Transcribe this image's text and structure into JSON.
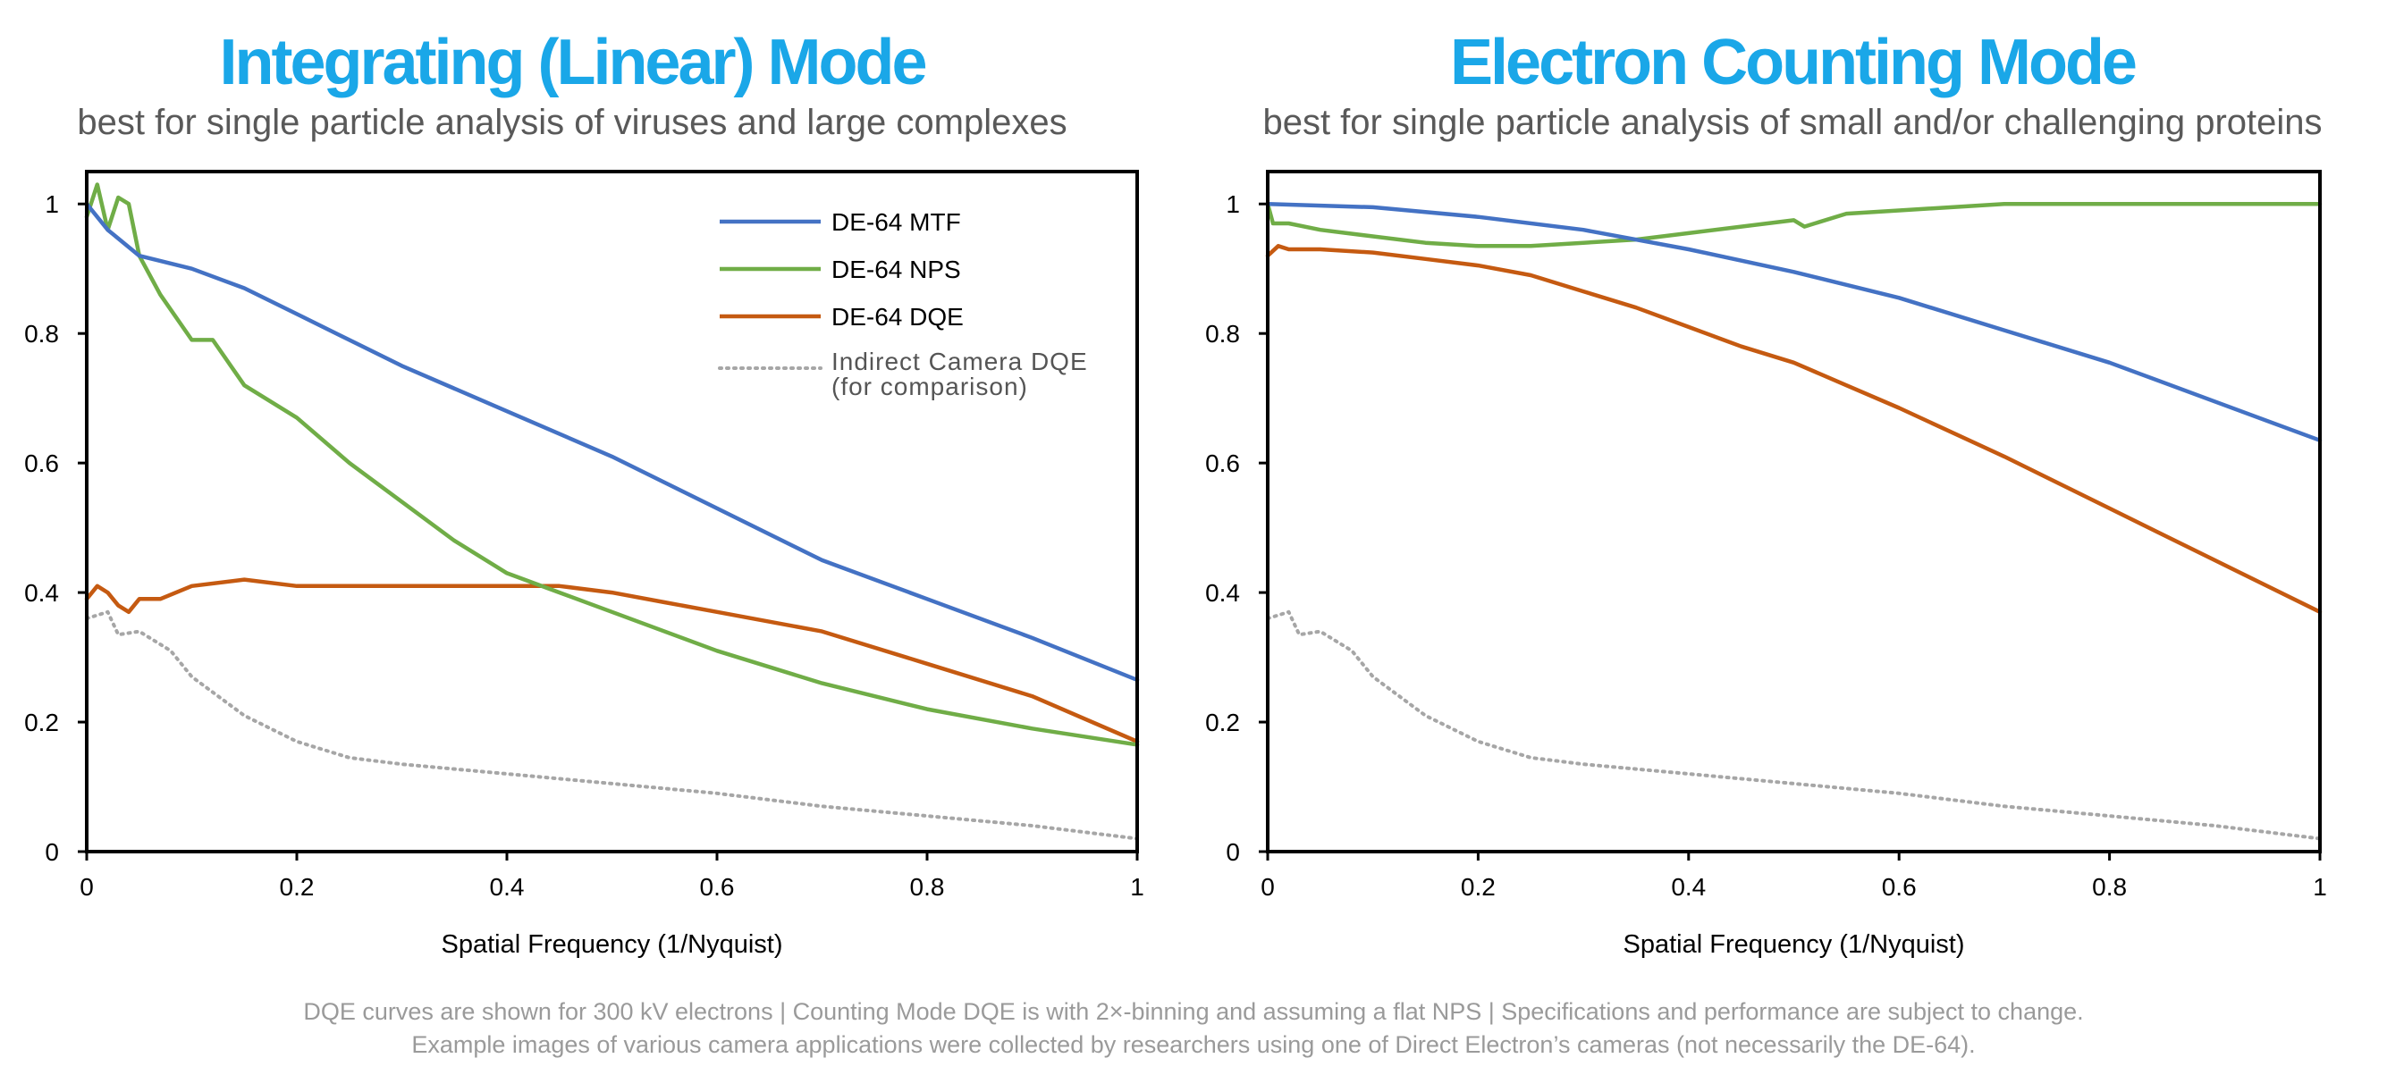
{
  "panels": [
    {
      "title": "Integrating (Linear) Mode",
      "subtitle": "best for single particle analysis of viruses and large complexes"
    },
    {
      "title": "Electron Counting Mode",
      "subtitle": "best for single particle analysis of small and/or challenging proteins"
    }
  ],
  "footer": {
    "line1": "DQE curves are shown for 300 kV electrons |   Counting Mode DQE is with 2×-binning and assuming a flat NPS |   Specifications and performance are subject to change.",
    "line2": "Example images of various camera applications were collected by researchers using one of Direct Electron’s cameras (not necessarily the  DE-64)."
  },
  "colors": {
    "title": "#1aa7e8",
    "mtf": "#4472c4",
    "nps": "#70ad47",
    "dqe": "#c55a11",
    "indirect": "#a6a6a6"
  },
  "chart_data": [
    {
      "type": "line",
      "title": "Integrating (Linear) Mode",
      "xlabel": "Spatial Frequency (1/Nyquist)",
      "ylabel": "",
      "xlim": [
        0,
        1
      ],
      "ylim": [
        0,
        1.05
      ],
      "xticks": [
        "0",
        "0.2",
        "0.4",
        "0.6",
        "0.8",
        "1"
      ],
      "yticks": [
        "0",
        "0.2",
        "0.4",
        "0.6",
        "0.8",
        "1"
      ],
      "grid": false,
      "legend": "top-right",
      "series": [
        {
          "name": "DE-64  MTF",
          "color": "#4472c4",
          "style": "solid",
          "x": [
            0,
            0.02,
            0.05,
            0.1,
            0.15,
            0.2,
            0.3,
            0.4,
            0.5,
            0.6,
            0.7,
            0.8,
            0.9,
            1.0
          ],
          "y": [
            1.0,
            0.96,
            0.92,
            0.9,
            0.87,
            0.83,
            0.75,
            0.68,
            0.61,
            0.53,
            0.45,
            0.39,
            0.33,
            0.265
          ]
        },
        {
          "name": "DE-64  NPS",
          "color": "#70ad47",
          "style": "solid",
          "x": [
            0,
            0.01,
            0.02,
            0.03,
            0.04,
            0.05,
            0.07,
            0.1,
            0.12,
            0.15,
            0.2,
            0.25,
            0.3,
            0.35,
            0.4,
            0.45,
            0.5,
            0.6,
            0.7,
            0.8,
            0.9,
            1.0
          ],
          "y": [
            0.98,
            1.03,
            0.96,
            1.01,
            1.0,
            0.92,
            0.86,
            0.79,
            0.79,
            0.72,
            0.67,
            0.6,
            0.54,
            0.48,
            0.43,
            0.4,
            0.37,
            0.31,
            0.26,
            0.22,
            0.19,
            0.165
          ]
        },
        {
          "name": "DE-64 DQE",
          "color": "#c55a11",
          "style": "solid",
          "x": [
            0,
            0.01,
            0.02,
            0.03,
            0.04,
            0.05,
            0.07,
            0.1,
            0.15,
            0.2,
            0.25,
            0.3,
            0.35,
            0.4,
            0.45,
            0.5,
            0.55,
            0.6,
            0.7,
            0.8,
            0.9,
            1.0
          ],
          "y": [
            0.39,
            0.41,
            0.4,
            0.38,
            0.37,
            0.39,
            0.39,
            0.41,
            0.42,
            0.41,
            0.41,
            0.41,
            0.41,
            0.41,
            0.41,
            0.4,
            0.385,
            0.37,
            0.34,
            0.29,
            0.24,
            0.17
          ]
        },
        {
          "name": "Indirect Camera DQE (for comparison)",
          "color": "#a6a6a6",
          "style": "dotted",
          "x": [
            0,
            0.02,
            0.03,
            0.05,
            0.08,
            0.1,
            0.15,
            0.2,
            0.25,
            0.3,
            0.4,
            0.5,
            0.6,
            0.7,
            0.8,
            0.9,
            1.0
          ],
          "y": [
            0.36,
            0.37,
            0.335,
            0.34,
            0.31,
            0.27,
            0.21,
            0.17,
            0.145,
            0.135,
            0.12,
            0.105,
            0.09,
            0.07,
            0.055,
            0.04,
            0.02
          ]
        }
      ]
    },
    {
      "type": "line",
      "title": "Electron Counting Mode",
      "xlabel": "Spatial Frequency (1/Nyquist)",
      "ylabel": "",
      "xlim": [
        0,
        1
      ],
      "ylim": [
        0,
        1.05
      ],
      "xticks": [
        "0",
        "0.2",
        "0.4",
        "0.6",
        "0.8",
        "1"
      ],
      "yticks": [
        "0",
        "0.2",
        "0.4",
        "0.6",
        "0.8",
        "1"
      ],
      "grid": false,
      "legend": "none",
      "series": [
        {
          "name": "DE-64  MTF",
          "color": "#4472c4",
          "style": "solid",
          "x": [
            0,
            0.1,
            0.2,
            0.3,
            0.4,
            0.5,
            0.6,
            0.7,
            0.8,
            0.9,
            1.0
          ],
          "y": [
            1.0,
            0.995,
            0.98,
            0.96,
            0.93,
            0.895,
            0.855,
            0.805,
            0.755,
            0.695,
            0.635
          ]
        },
        {
          "name": "DE-64  NPS",
          "color": "#70ad47",
          "style": "solid",
          "x": [
            0,
            0.005,
            0.02,
            0.05,
            0.1,
            0.15,
            0.2,
            0.25,
            0.3,
            0.35,
            0.4,
            0.45,
            0.5,
            0.51,
            0.55,
            0.6,
            0.7,
            0.8,
            0.9,
            1.0
          ],
          "y": [
            1.0,
            0.97,
            0.97,
            0.96,
            0.95,
            0.94,
            0.935,
            0.935,
            0.94,
            0.945,
            0.955,
            0.965,
            0.975,
            0.965,
            0.985,
            0.99,
            1.0,
            1.0,
            1.0,
            1.0
          ]
        },
        {
          "name": "DE-64 DQE",
          "color": "#c55a11",
          "style": "solid",
          "x": [
            0,
            0.01,
            0.02,
            0.05,
            0.1,
            0.15,
            0.2,
            0.25,
            0.3,
            0.35,
            0.4,
            0.45,
            0.5,
            0.55,
            0.6,
            0.7,
            0.8,
            0.9,
            1.0
          ],
          "y": [
            0.92,
            0.935,
            0.93,
            0.93,
            0.925,
            0.915,
            0.905,
            0.89,
            0.865,
            0.84,
            0.81,
            0.78,
            0.755,
            0.72,
            0.685,
            0.61,
            0.53,
            0.45,
            0.37
          ]
        },
        {
          "name": "Indirect Camera DQE (for comparison)",
          "color": "#a6a6a6",
          "style": "dotted",
          "x": [
            0,
            0.02,
            0.03,
            0.05,
            0.08,
            0.1,
            0.15,
            0.2,
            0.25,
            0.3,
            0.4,
            0.5,
            0.6,
            0.7,
            0.8,
            0.9,
            1.0
          ],
          "y": [
            0.36,
            0.37,
            0.335,
            0.34,
            0.31,
            0.27,
            0.21,
            0.17,
            0.145,
            0.135,
            0.12,
            0.105,
            0.09,
            0.07,
            0.055,
            0.04,
            0.02
          ]
        }
      ]
    }
  ]
}
